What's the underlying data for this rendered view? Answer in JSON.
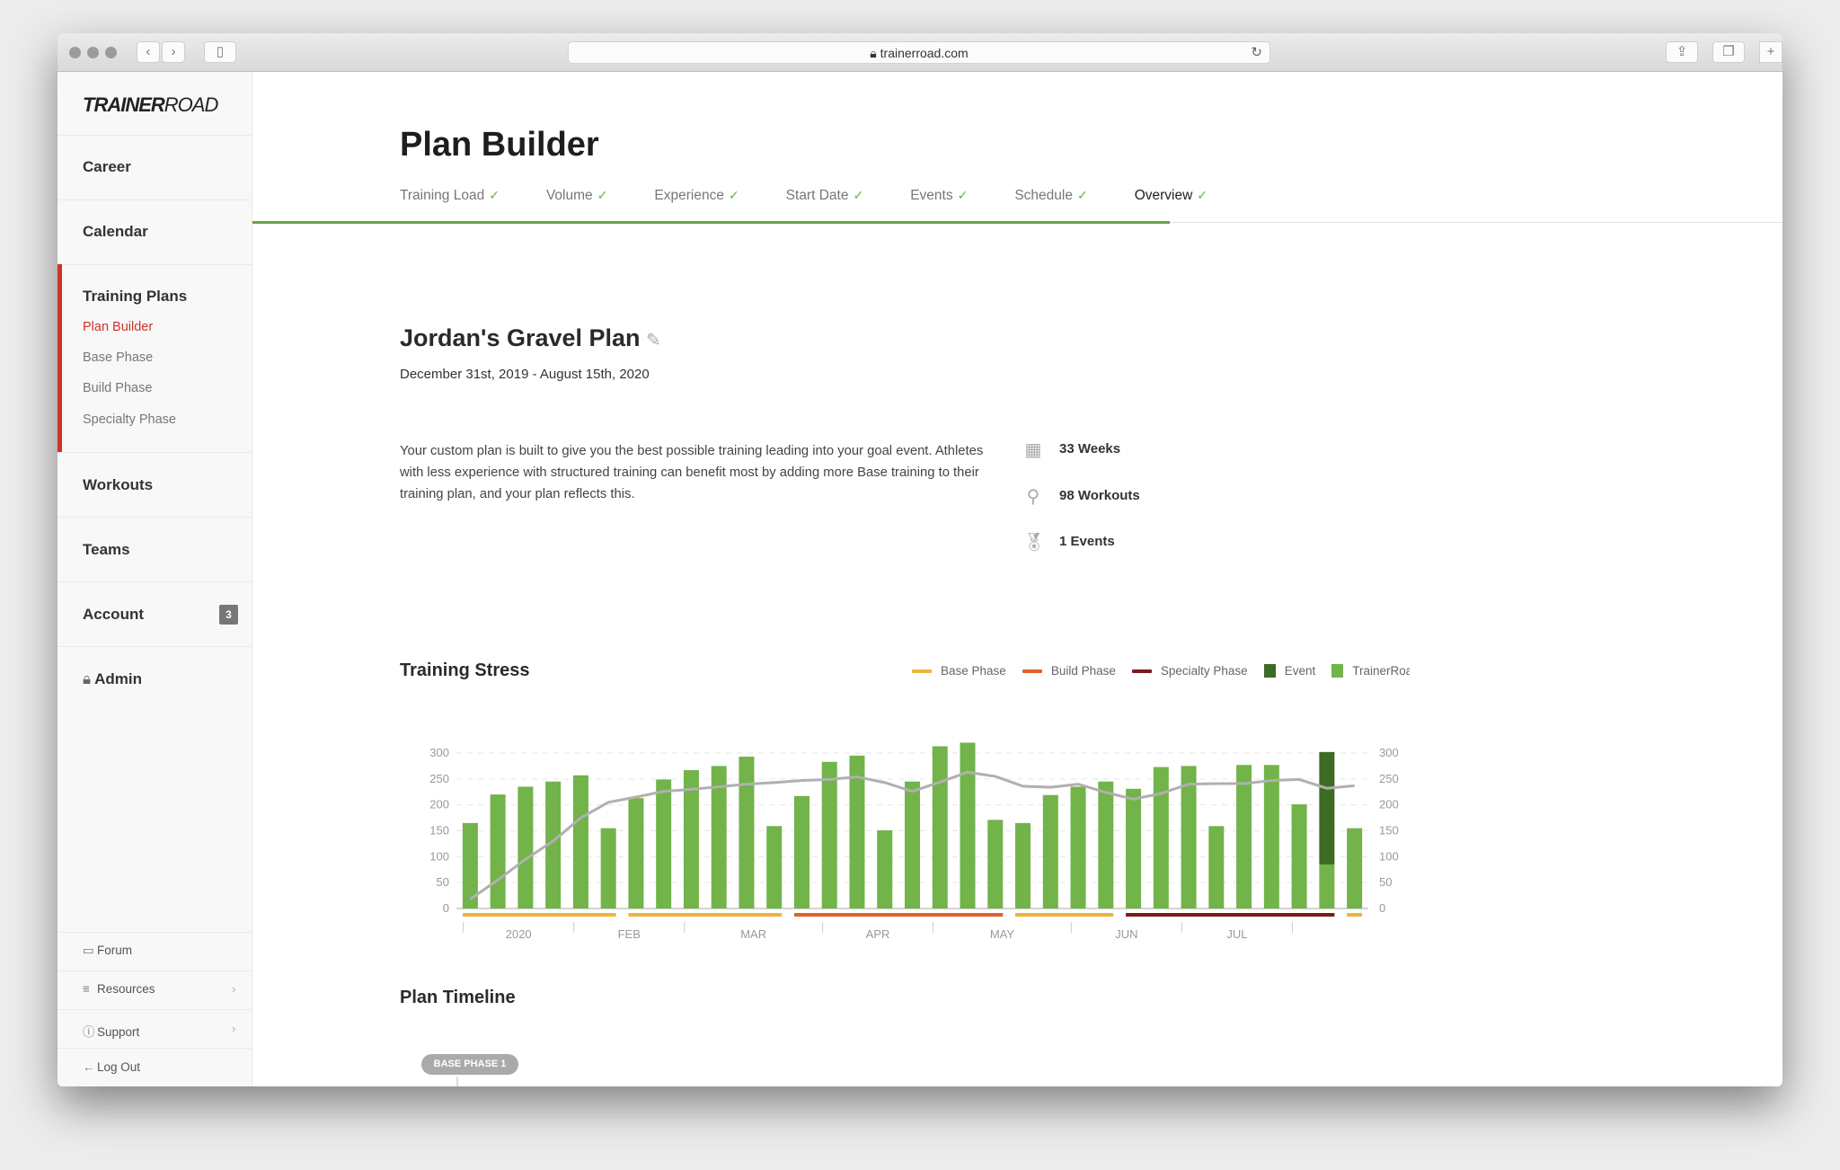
{
  "browser": {
    "url": "trainerroad.com"
  },
  "sidebar": {
    "logo": {
      "bold": "TRAINER",
      "light": "ROAD"
    },
    "items": [
      {
        "label": "Career"
      },
      {
        "label": "Calendar"
      },
      {
        "label": "Training Plans"
      },
      {
        "label": "Workouts"
      },
      {
        "label": "Teams"
      },
      {
        "label": "Account",
        "badge": "3"
      },
      {
        "label": "Admin"
      }
    ],
    "subitems": [
      {
        "label": "Plan Builder",
        "active": true
      },
      {
        "label": "Base Phase"
      },
      {
        "label": "Build Phase"
      },
      {
        "label": "Specialty Phase"
      }
    ],
    "footer": [
      {
        "label": "Forum",
        "icon": "chat-icon"
      },
      {
        "label": "Resources",
        "icon": "list-icon"
      },
      {
        "label": "Support",
        "icon": "help-icon"
      },
      {
        "label": "Log Out",
        "icon": "arrow-left-icon"
      }
    ]
  },
  "page": {
    "title": "Plan Builder",
    "tabs": [
      {
        "label": "Training Load"
      },
      {
        "label": "Volume"
      },
      {
        "label": "Experience"
      },
      {
        "label": "Start Date"
      },
      {
        "label": "Events"
      },
      {
        "label": "Schedule"
      },
      {
        "label": "Overview",
        "current": true
      }
    ],
    "check": "✓"
  },
  "plan": {
    "name": "Jordan's Gravel Plan",
    "dates": "December 31st, 2019 - August 15th, 2020",
    "description": "Your custom plan is built to give you the best possible training leading into your goal event. Athletes with less experience with structured training can benefit most by adding more Base training to their training plan, and your plan reflects this.",
    "stats": [
      {
        "label": "33 Weeks",
        "icon": "calendar-icon"
      },
      {
        "label": "98 Workouts",
        "icon": "bike-icon"
      },
      {
        "label": "1 Events",
        "icon": "medal-icon"
      }
    ]
  },
  "chart_data": {
    "type": "bar",
    "title": "Training Stress",
    "legend": [
      {
        "name": "Base Phase",
        "color": "#f0b43c",
        "kind": "line"
      },
      {
        "name": "Build Phase",
        "color": "#e0612e",
        "kind": "line"
      },
      {
        "name": "Specialty Phase",
        "color": "#7a1d1a",
        "kind": "line"
      },
      {
        "name": "Event",
        "color": "#3d6a24",
        "kind": "square"
      },
      {
        "name": "TrainerRoad",
        "color": "#72b34a",
        "kind": "square"
      }
    ],
    "ylim": [
      0,
      300
    ],
    "yticks": [
      0,
      50,
      100,
      150,
      200,
      250,
      300
    ],
    "grid": true,
    "x_labels": [
      "2020",
      "FEB",
      "MAR",
      "APR",
      "MAY",
      "JUN",
      "JUL"
    ],
    "workout_tss": [
      165,
      220,
      235,
      245,
      257,
      155,
      213,
      249,
      267,
      275,
      293,
      159,
      217,
      283,
      295,
      151,
      245,
      313,
      320,
      171,
      165,
      219,
      235,
      245,
      231,
      273,
      275,
      159,
      277,
      277,
      201,
      85,
      155
    ],
    "event_tss": [
      0,
      0,
      0,
      0,
      0,
      0,
      0,
      0,
      0,
      0,
      0,
      0,
      0,
      0,
      0,
      0,
      0,
      0,
      0,
      0,
      0,
      0,
      0,
      0,
      0,
      0,
      0,
      0,
      0,
      0,
      0,
      217,
      0
    ],
    "fitness_line": [
      18,
      55,
      95,
      130,
      175,
      205,
      215,
      226,
      230,
      235,
      240,
      243,
      247,
      249,
      254,
      243,
      226,
      244,
      263,
      255,
      236,
      234,
      240,
      224,
      211,
      222,
      240,
      241,
      241,
      247,
      249,
      232,
      237
    ],
    "phases": [
      {
        "phase": "Base Phase",
        "start_week": 1,
        "end_week": 6
      },
      {
        "phase": "Base Phase",
        "start_week": 7,
        "end_week": 12
      },
      {
        "phase": "Build Phase",
        "start_week": 13,
        "end_week": 20
      },
      {
        "phase": "Base Phase",
        "start_week": 21,
        "end_week": 24
      },
      {
        "phase": "Specialty Phase",
        "start_week": 25,
        "end_week": 32
      },
      {
        "phase": "Base Phase",
        "start_week": 33,
        "end_week": 33
      }
    ],
    "line_color": "#b0b0b0"
  },
  "timeline": {
    "title": "Plan Timeline",
    "first_phase": "BASE PHASE 1"
  }
}
